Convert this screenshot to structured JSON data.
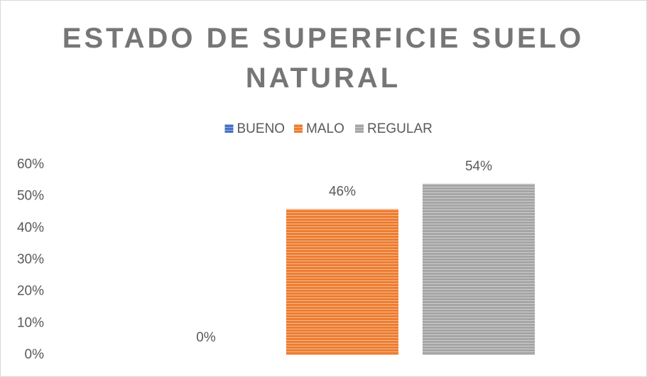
{
  "chart_data": {
    "type": "bar",
    "title": "ESTADO DE SUPERFICIE SUELO NATURAL",
    "series": [
      {
        "name": "BUENO",
        "color": "#4472c4",
        "values": [
          0
        ],
        "value_labels": [
          "0%"
        ]
      },
      {
        "name": "MALO",
        "color": "#ed7d31",
        "values": [
          46
        ],
        "value_labels": [
          "46%"
        ]
      },
      {
        "name": "REGULAR",
        "color": "#a5a5a5",
        "values": [
          54
        ],
        "value_labels": [
          "54%"
        ]
      }
    ],
    "ylim": [
      0,
      60
    ],
    "yticks": [
      {
        "value": 0,
        "label": "0%"
      },
      {
        "value": 10,
        "label": "10%"
      },
      {
        "value": 20,
        "label": "20%"
      },
      {
        "value": 30,
        "label": "30%"
      },
      {
        "value": 40,
        "label": "40%"
      },
      {
        "value": 50,
        "label": "50%"
      },
      {
        "value": 60,
        "label": "60%"
      }
    ],
    "legend": "top",
    "grid": false
  }
}
